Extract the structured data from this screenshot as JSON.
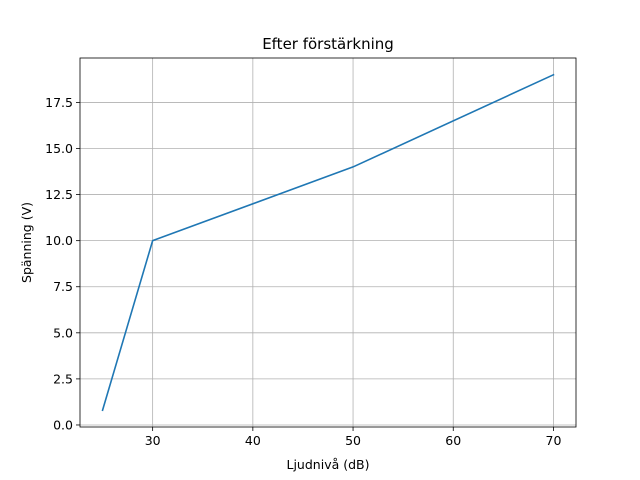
{
  "chart_data": {
    "type": "line",
    "title": "Efter förstärkning",
    "xlabel": "Ljudnivå (dB)",
    "ylabel": "Spänning (V)",
    "xlim": [
      22.75,
      72.25
    ],
    "ylim": [
      -0.11,
      19.91
    ],
    "xticks": [
      30,
      40,
      50,
      60,
      70
    ],
    "yticks": [
      0.0,
      2.5,
      5.0,
      7.5,
      10.0,
      12.5,
      15.0,
      17.5
    ],
    "xtick_labels": [
      "30",
      "40",
      "50",
      "60",
      "70"
    ],
    "ytick_labels": [
      "0.0",
      "2.5",
      "5.0",
      "7.5",
      "10.0",
      "12.5",
      "15.0",
      "17.5"
    ],
    "grid": true,
    "series": [
      {
        "color": "#1f77b4",
        "x": [
          25,
          30,
          50,
          70
        ],
        "y": [
          0.8,
          10,
          14,
          19
        ]
      }
    ]
  }
}
